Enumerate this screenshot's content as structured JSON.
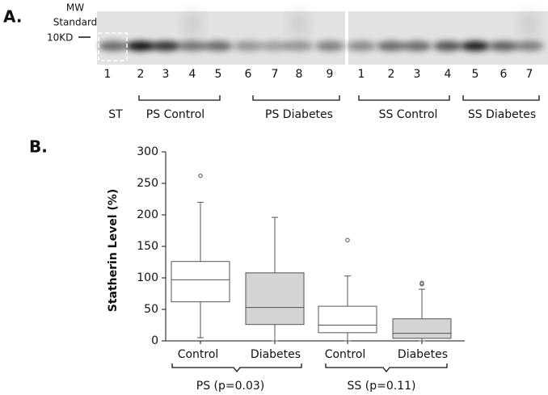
{
  "blot": {
    "panel_label": "A.",
    "mw_label": [
      "MW",
      "Standard"
    ],
    "marker": "10KD",
    "lanes_left": [
      "1",
      "2",
      "3",
      "4",
      "5",
      "6",
      "7",
      "8",
      "9"
    ],
    "lanes_right": [
      "1",
      "2",
      "3",
      "4",
      "5",
      "6",
      "7"
    ],
    "groups": [
      "ST",
      "PS Control",
      "PS Diabetes",
      "SS Control",
      "SS Diabetes"
    ]
  },
  "chart_data": {
    "type": "box",
    "panel_label": "B.",
    "ylabel": "Statherin Level (%)",
    "categories": [
      "Control",
      "Diabetes",
      "Control",
      "Diabetes"
    ],
    "groups": [
      "PS (p=0.03)",
      "SS (p=0.11)"
    ],
    "colors": [
      "#ffffff",
      "#d4d4d4",
      "#ffffff",
      "#d4d4d4"
    ],
    "boxes": [
      {
        "whisker_low": 5,
        "q1": 62,
        "median": 97,
        "q3": 126,
        "whisker_high": 220,
        "outliers": [
          262
        ]
      },
      {
        "whisker_low": 0,
        "q1": 26,
        "median": 53,
        "q3": 108,
        "whisker_high": 196,
        "outliers": []
      },
      {
        "whisker_low": 0,
        "q1": 13,
        "median": 25,
        "q3": 55,
        "whisker_high": 103,
        "outliers": [
          160
        ]
      },
      {
        "whisker_low": 0,
        "q1": 4,
        "median": 12,
        "q3": 35,
        "whisker_high": 82,
        "outliers": [
          92,
          90
        ]
      }
    ],
    "ylim": [
      0,
      300
    ],
    "yticks": [
      0,
      50,
      100,
      150,
      200,
      250,
      300
    ]
  }
}
